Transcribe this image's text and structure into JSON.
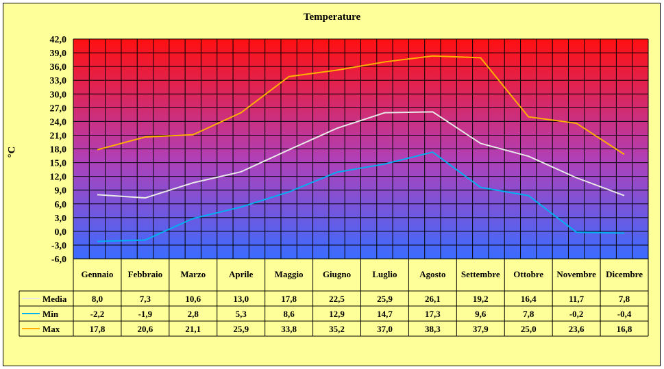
{
  "chart_data": {
    "type": "line",
    "title": "Temperature",
    "ylabel": "°C",
    "ylim": [
      -6,
      42
    ],
    "y_ticks": [
      "42,0",
      "39,0",
      "36,0",
      "33,0",
      "30,0",
      "27,0",
      "24,0",
      "21,0",
      "18,0",
      "15,0",
      "12,0",
      "9,0",
      "6,0",
      "3,0",
      "0,0",
      "-3,0",
      "-6,0"
    ],
    "categories": [
      "Gennaio",
      "Febbraio",
      "Marzo",
      "Aprile",
      "Maggio",
      "Giugno",
      "Luglio",
      "Agosto",
      "Settembre",
      "Ottobre",
      "Novembre",
      "Dicembre"
    ],
    "series": [
      {
        "name": "Media",
        "color": "#e8e8e8",
        "values": [
          8.0,
          7.3,
          10.6,
          13.0,
          17.8,
          22.5,
          25.9,
          26.1,
          19.2,
          16.4,
          11.7,
          7.8
        ],
        "labels": [
          "8,0",
          "7,3",
          "10,6",
          "13,0",
          "17,8",
          "22,5",
          "25,9",
          "26,1",
          "19,2",
          "16,4",
          "11,7",
          "7,8"
        ]
      },
      {
        "name": "Min",
        "color": "#00b0f0",
        "values": [
          -2.2,
          -1.9,
          2.8,
          5.3,
          8.6,
          12.9,
          14.7,
          17.3,
          9.6,
          7.8,
          -0.2,
          -0.4
        ],
        "labels": [
          "-2,2",
          "-1,9",
          "2,8",
          "5,3",
          "8,6",
          "12,9",
          "14,7",
          "17,3",
          "9,6",
          "7,8",
          "-0,2",
          "-0,4"
        ]
      },
      {
        "name": "Max",
        "color": "#ffb000",
        "values": [
          17.8,
          20.6,
          21.1,
          25.9,
          33.8,
          35.2,
          37.0,
          38.3,
          37.9,
          25.0,
          23.6,
          16.8
        ],
        "labels": [
          "17,8",
          "20,6",
          "21,1",
          "25,9",
          "33,8",
          "35,2",
          "37,0",
          "38,3",
          "37,9",
          "25,0",
          "23,6",
          "16,8"
        ]
      }
    ],
    "grid": true,
    "legend": "data-table"
  }
}
